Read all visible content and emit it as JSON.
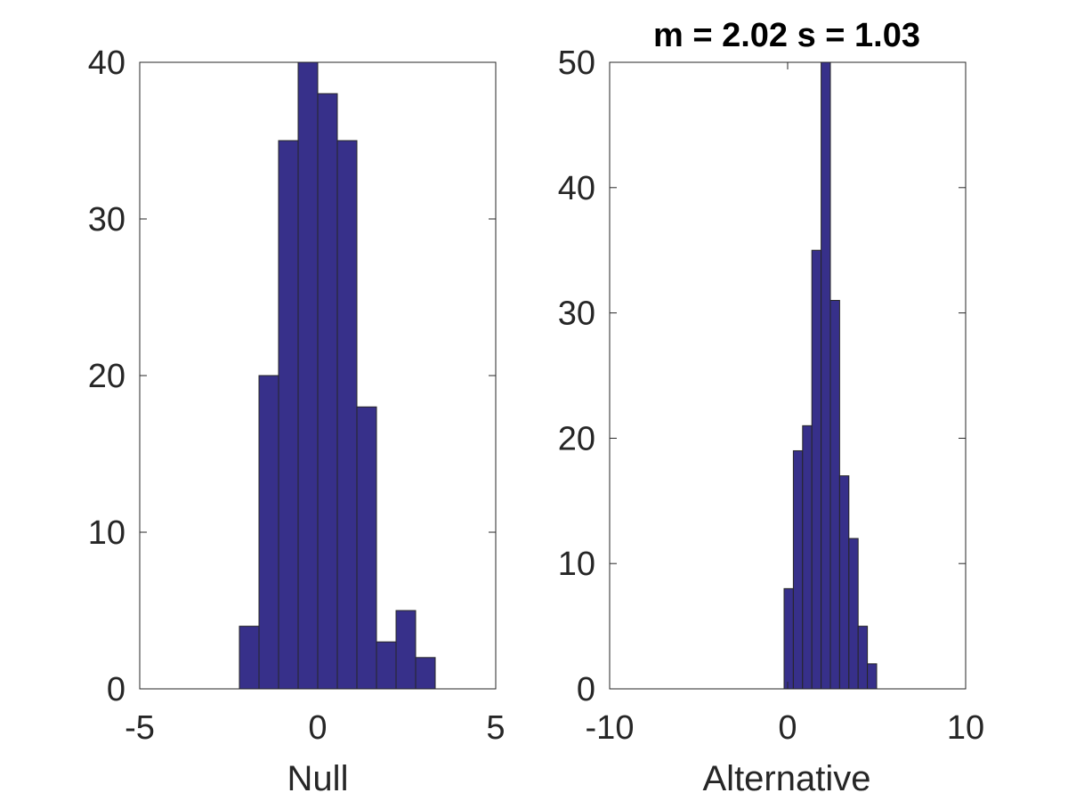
{
  "chart_data": [
    {
      "type": "bar",
      "title": "",
      "xlabel": "Null",
      "ylabel": "",
      "xlim": [
        -5,
        5
      ],
      "ylim": [
        0,
        40
      ],
      "xticks": [
        "-5",
        "0",
        "5"
      ],
      "yticks": [
        "0",
        "10",
        "20",
        "30",
        "40"
      ],
      "grid": false,
      "bar_color": "#37308A",
      "bin_edges": [
        -2.2,
        -1.65,
        -1.1,
        -0.55,
        0.0,
        0.55,
        1.1,
        1.65,
        2.2,
        2.75,
        3.3
      ],
      "values": [
        4,
        20,
        35,
        40,
        38,
        35,
        18,
        3,
        5,
        2
      ]
    },
    {
      "type": "bar",
      "title": "m = 2.02 s = 1.03",
      "xlabel": "Alternative",
      "ylabel": "",
      "xlim": [
        -10,
        10
      ],
      "ylim": [
        0,
        50
      ],
      "xticks": [
        "-10",
        "0",
        "10"
      ],
      "yticks": [
        "0",
        "10",
        "20",
        "30",
        "40",
        "50"
      ],
      "grid": false,
      "bar_color": "#37308A",
      "bin_edges": [
        -0.2,
        0.32,
        0.84,
        1.36,
        1.88,
        2.4,
        2.92,
        3.44,
        3.96,
        4.48,
        5.0
      ],
      "values": [
        8,
        19,
        21,
        35,
        50,
        31,
        17,
        12,
        5,
        2
      ]
    }
  ]
}
